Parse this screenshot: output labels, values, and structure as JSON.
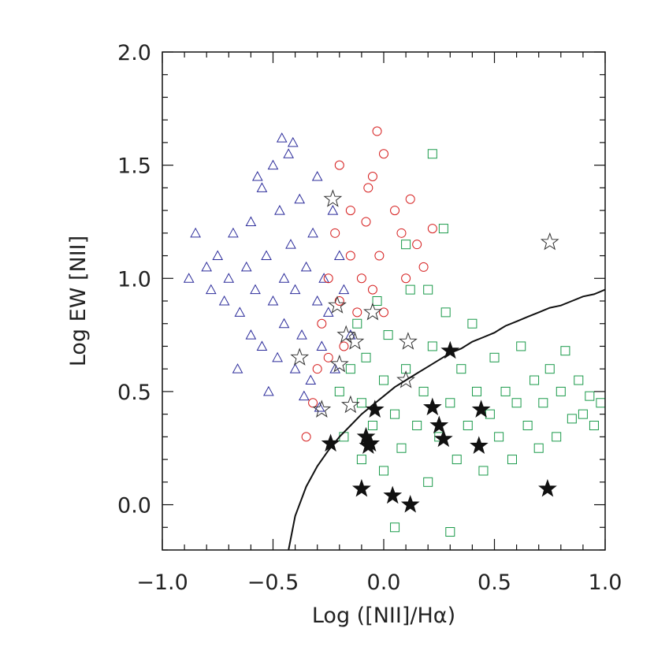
{
  "chart_data": {
    "type": "scatter",
    "xlabel": "Log ([NII]/Hα)",
    "ylabel": "Log EW [NII]",
    "xlim": [
      -1.0,
      1.0
    ],
    "ylim": [
      -0.2,
      2.0
    ],
    "x_ticks": [
      "−1.0",
      "−0.5",
      "0.0",
      "0.5",
      "1.0"
    ],
    "y_ticks": [
      "0.0",
      "0.5",
      "1.0",
      "1.5",
      "2.0"
    ],
    "x_tick_values": [
      -1.0,
      -0.5,
      0.0,
      0.5,
      1.0
    ],
    "y_tick_values": [
      0.0,
      0.5,
      1.0,
      1.5,
      2.0
    ],
    "grid": false,
    "series": [
      {
        "marker": "triangle",
        "color": "#2b2b9a",
        "points": [
          [
            -0.85,
            1.2
          ],
          [
            -0.8,
            1.05
          ],
          [
            -0.78,
            0.95
          ],
          [
            -0.75,
            1.1
          ],
          [
            -0.72,
            0.9
          ],
          [
            -0.7,
            1.0
          ],
          [
            -0.68,
            1.2
          ],
          [
            -0.65,
            0.85
          ],
          [
            -0.62,
            1.05
          ],
          [
            -0.6,
            0.75
          ],
          [
            -0.6,
            1.25
          ],
          [
            -0.58,
            0.95
          ],
          [
            -0.55,
            1.4
          ],
          [
            -0.55,
            0.7
          ],
          [
            -0.53,
            1.1
          ],
          [
            -0.5,
            0.9
          ],
          [
            -0.5,
            1.5
          ],
          [
            -0.48,
            0.65
          ],
          [
            -0.47,
            1.3
          ],
          [
            -0.45,
            1.0
          ],
          [
            -0.45,
            0.8
          ],
          [
            -0.43,
            1.55
          ],
          [
            -0.42,
            1.15
          ],
          [
            -0.4,
            0.95
          ],
          [
            -0.4,
            0.6
          ],
          [
            -0.38,
            1.35
          ],
          [
            -0.37,
            0.75
          ],
          [
            -0.35,
            1.05
          ],
          [
            -0.33,
            0.55
          ],
          [
            -0.32,
            1.2
          ],
          [
            -0.3,
            0.9
          ],
          [
            -0.3,
            1.45
          ],
          [
            -0.28,
            0.7
          ],
          [
            -0.27,
            1.0
          ],
          [
            -0.25,
            0.85
          ],
          [
            -0.23,
            1.3
          ],
          [
            -0.22,
            0.6
          ],
          [
            -0.2,
            1.1
          ],
          [
            -0.18,
            0.95
          ],
          [
            -0.15,
            0.75
          ],
          [
            -0.88,
            1.0
          ],
          [
            -0.66,
            0.6
          ],
          [
            -0.52,
            0.5
          ],
          [
            -0.46,
            1.62
          ],
          [
            -0.36,
            0.48
          ],
          [
            -0.29,
            0.43
          ],
          [
            -0.41,
            1.6
          ],
          [
            -0.57,
            1.45
          ]
        ]
      },
      {
        "marker": "circle",
        "color": "#d62020",
        "points": [
          [
            -0.35,
            0.3
          ],
          [
            -0.32,
            0.45
          ],
          [
            -0.3,
            0.6
          ],
          [
            -0.28,
            0.8
          ],
          [
            -0.25,
            1.0
          ],
          [
            -0.25,
            0.65
          ],
          [
            -0.22,
            1.2
          ],
          [
            -0.2,
            0.9
          ],
          [
            -0.2,
            1.5
          ],
          [
            -0.18,
            0.7
          ],
          [
            -0.15,
            1.1
          ],
          [
            -0.15,
            1.3
          ],
          [
            -0.12,
            0.85
          ],
          [
            -0.1,
            1.0
          ],
          [
            -0.08,
            1.25
          ],
          [
            -0.05,
            1.45
          ],
          [
            -0.05,
            0.95
          ],
          [
            -0.02,
            1.1
          ],
          [
            0.0,
            1.55
          ],
          [
            0.0,
            0.85
          ],
          [
            0.05,
            1.3
          ],
          [
            0.08,
            1.2
          ],
          [
            0.1,
            1.0
          ],
          [
            0.12,
            1.35
          ],
          [
            0.15,
            1.15
          ],
          [
            0.18,
            1.05
          ],
          [
            0.22,
            1.22
          ],
          [
            -0.03,
            1.65
          ],
          [
            -0.07,
            1.4
          ]
        ]
      },
      {
        "marker": "square",
        "color": "#1a9a4a",
        "points": [
          [
            -0.2,
            0.5
          ],
          [
            -0.18,
            0.3
          ],
          [
            -0.15,
            0.6
          ],
          [
            -0.12,
            0.8
          ],
          [
            -0.1,
            0.45
          ],
          [
            -0.1,
            0.2
          ],
          [
            -0.08,
            0.65
          ],
          [
            -0.05,
            0.35
          ],
          [
            -0.03,
            0.9
          ],
          [
            0.0,
            0.55
          ],
          [
            0.0,
            0.15
          ],
          [
            0.02,
            0.75
          ],
          [
            0.05,
            0.4
          ],
          [
            0.08,
            0.25
          ],
          [
            0.1,
            0.6
          ],
          [
            0.12,
            0.95
          ],
          [
            0.15,
            0.35
          ],
          [
            0.18,
            0.5
          ],
          [
            0.2,
            0.1
          ],
          [
            0.22,
            0.7
          ],
          [
            0.25,
            0.3
          ],
          [
            0.28,
            0.85
          ],
          [
            0.3,
            0.45
          ],
          [
            0.33,
            0.2
          ],
          [
            0.35,
            0.6
          ],
          [
            0.38,
            0.35
          ],
          [
            0.4,
            0.8
          ],
          [
            0.42,
            0.5
          ],
          [
            0.45,
            0.15
          ],
          [
            0.48,
            0.4
          ],
          [
            0.5,
            0.65
          ],
          [
            0.52,
            0.3
          ],
          [
            0.55,
            0.5
          ],
          [
            0.58,
            0.2
          ],
          [
            0.6,
            0.45
          ],
          [
            0.62,
            0.7
          ],
          [
            0.65,
            0.35
          ],
          [
            0.68,
            0.55
          ],
          [
            0.7,
            0.25
          ],
          [
            0.72,
            0.45
          ],
          [
            0.75,
            0.6
          ],
          [
            0.78,
            0.3
          ],
          [
            0.8,
            0.5
          ],
          [
            0.82,
            0.68
          ],
          [
            0.85,
            0.38
          ],
          [
            0.88,
            0.55
          ],
          [
            0.9,
            0.4
          ],
          [
            0.93,
            0.48
          ],
          [
            0.95,
            0.35
          ],
          [
            0.98,
            0.45
          ],
          [
            0.27,
            1.22
          ],
          [
            0.22,
            1.55
          ],
          [
            0.1,
            1.15
          ],
          [
            0.2,
            0.95
          ],
          [
            0.3,
            -0.12
          ],
          [
            0.05,
            -0.1
          ]
        ]
      },
      {
        "marker": "star-open",
        "color": "#333333",
        "points": [
          [
            -0.23,
            1.35
          ],
          [
            -0.21,
            0.88
          ],
          [
            -0.2,
            0.62
          ],
          [
            -0.17,
            0.75
          ],
          [
            -0.13,
            0.72
          ],
          [
            0.11,
            0.72
          ],
          [
            0.1,
            0.55
          ],
          [
            -0.28,
            0.42
          ],
          [
            -0.38,
            0.65
          ],
          [
            -0.05,
            0.85
          ],
          [
            0.75,
            1.16
          ],
          [
            -0.15,
            0.44
          ]
        ]
      },
      {
        "marker": "star-filled",
        "color": "#111111",
        "points": [
          [
            -0.24,
            0.27
          ],
          [
            -0.1,
            0.07
          ],
          [
            -0.08,
            0.3
          ],
          [
            -0.06,
            0.27
          ],
          [
            -0.07,
            0.26
          ],
          [
            -0.04,
            0.42
          ],
          [
            0.04,
            0.04
          ],
          [
            0.12,
            0.0
          ],
          [
            0.22,
            0.43
          ],
          [
            0.25,
            0.35
          ],
          [
            0.27,
            0.29
          ],
          [
            0.3,
            0.68
          ],
          [
            0.43,
            0.26
          ],
          [
            0.44,
            0.42
          ],
          [
            0.74,
            0.07
          ]
        ]
      }
    ],
    "curve": {
      "color": "#111111",
      "x": [
        -0.43,
        -0.4,
        -0.35,
        -0.3,
        -0.25,
        -0.2,
        -0.15,
        -0.1,
        -0.05,
        0.0,
        0.05,
        0.1,
        0.15,
        0.2,
        0.25,
        0.3,
        0.35,
        0.4,
        0.45,
        0.5,
        0.55,
        0.6,
        0.65,
        0.7,
        0.75,
        0.8,
        0.85,
        0.9,
        0.95,
        1.0
      ],
      "y": [
        -0.2,
        -0.05,
        0.08,
        0.17,
        0.24,
        0.3,
        0.35,
        0.4,
        0.44,
        0.48,
        0.52,
        0.55,
        0.58,
        0.61,
        0.64,
        0.67,
        0.69,
        0.72,
        0.74,
        0.76,
        0.79,
        0.81,
        0.83,
        0.85,
        0.87,
        0.88,
        0.9,
        0.92,
        0.93,
        0.95
      ]
    }
  }
}
